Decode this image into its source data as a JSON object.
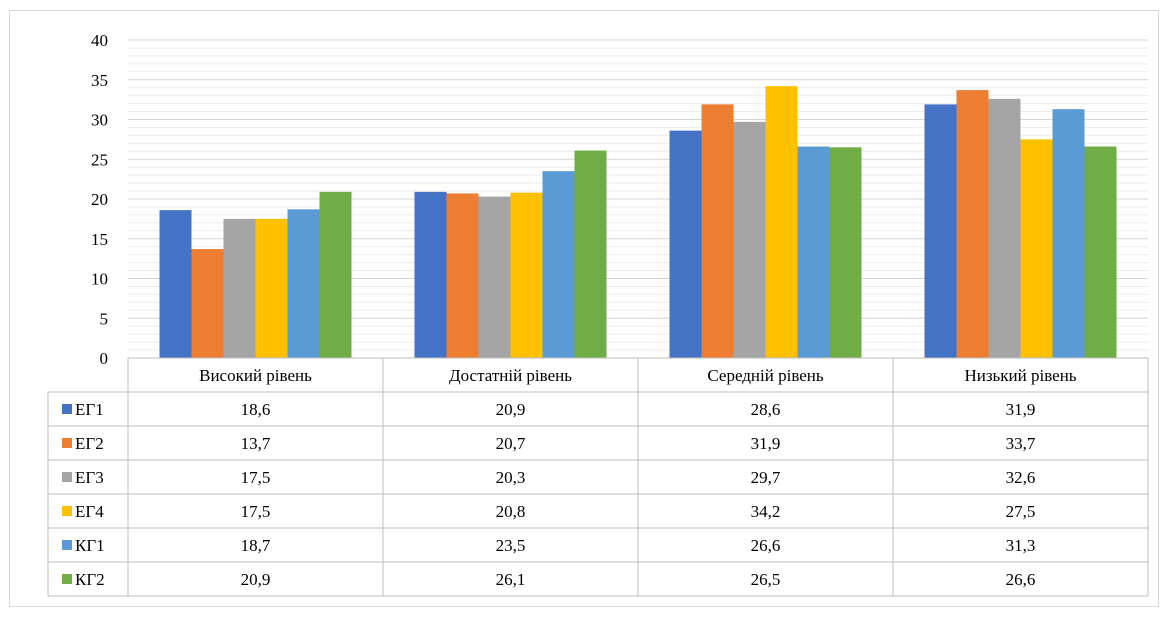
{
  "chart_data": {
    "type": "bar",
    "categories": [
      "Високий рівень",
      "Достатній рівень",
      "Середній рівень",
      "Низький рівень"
    ],
    "series": [
      {
        "name": "ЕГ1",
        "color": "#4472C4",
        "values": [
          18.6,
          20.9,
          28.6,
          31.9
        ]
      },
      {
        "name": "ЕГ2",
        "color": "#ED7D31",
        "values": [
          13.7,
          20.7,
          31.9,
          33.7
        ]
      },
      {
        "name": "ЕГ3",
        "color": "#A5A5A5",
        "values": [
          17.5,
          20.3,
          29.7,
          32.6
        ]
      },
      {
        "name": "ЕГ4",
        "color": "#FFC000",
        "values": [
          17.5,
          20.8,
          34.2,
          27.5
        ]
      },
      {
        "name": "КГ1",
        "color": "#5B9BD5",
        "values": [
          18.7,
          23.5,
          26.6,
          31.3
        ]
      },
      {
        "name": "КГ2",
        "color": "#70AD47",
        "values": [
          20.9,
          26.1,
          26.5,
          26.6
        ]
      }
    ],
    "value_labels": [
      [
        "18,6",
        "20,9",
        "28,6",
        "31,9"
      ],
      [
        "13,7",
        "20,7",
        "31,9",
        "33,7"
      ],
      [
        "17,5",
        "20,3",
        "29,7",
        "32,6"
      ],
      [
        "17,5",
        "20,8",
        "34,2",
        "27,5"
      ],
      [
        "18,7",
        "23,5",
        "26,6",
        "31,3"
      ],
      [
        "20,9",
        "26,1",
        "26,5",
        "26,6"
      ]
    ],
    "ylim": [
      0,
      40
    ],
    "yticks": [
      0,
      5,
      10,
      15,
      20,
      25,
      30,
      35,
      40
    ],
    "minor_gridline_step": 1,
    "grid": true,
    "legend": "data-table",
    "title": "",
    "xlabel": "",
    "ylabel": ""
  }
}
